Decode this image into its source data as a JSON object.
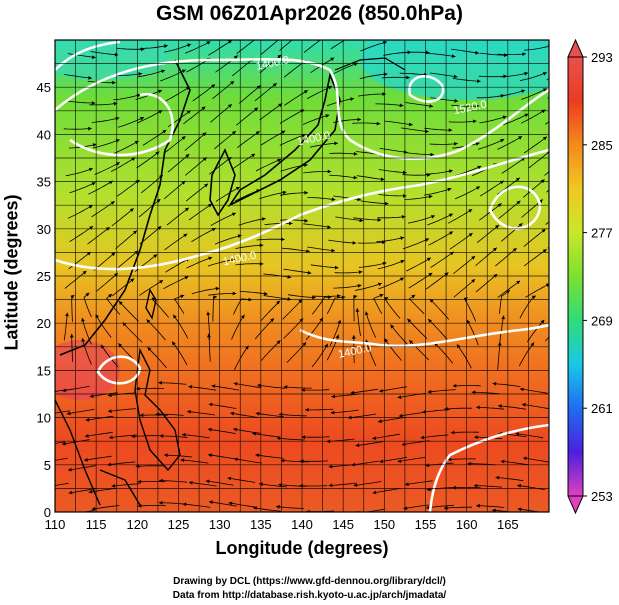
{
  "title": "GSM 06Z01Apr2026 (850.0hPa)",
  "xlabel": "Longitude (degrees)",
  "ylabel": "Latitude  (degrees)",
  "credits": [
    "Drawing by DCL (https://www.gfd-dennou.org/library/dcl/)",
    "Data from http://database.rish.kyoto-u.ac.jp/arch/jmadata/"
  ],
  "map": {
    "x_range": [
      110,
      170
    ],
    "y_range": [
      0,
      50
    ],
    "x_ticks": [
      110,
      115,
      120,
      125,
      130,
      135,
      140,
      145,
      150,
      155,
      160,
      165
    ],
    "y_ticks": [
      0,
      5,
      10,
      15,
      20,
      25,
      30,
      35,
      40,
      45
    ],
    "grid": true,
    "colorbar": {
      "ticks": [
        293,
        285,
        277,
        269,
        261,
        253
      ],
      "range": [
        253,
        293
      ],
      "colors": [
        "#e040c0",
        "#4b20e0",
        "#1e6ef0",
        "#18c8e8",
        "#30dc78",
        "#7ce030",
        "#c8e828",
        "#f0c820",
        "#f48a1c",
        "#ec3c20",
        "#e85050"
      ]
    },
    "contour_labels": [
      "1400.0",
      "1400.0",
      "1400.0",
      "1400.0",
      "1520.0"
    ],
    "contour_label_positions": [
      [
        136.5,
        47.2
      ],
      [
        141.5,
        39.2
      ],
      [
        132.5,
        26.5
      ],
      [
        146.5,
        16.7
      ],
      [
        160.5,
        42.5
      ]
    ]
  }
}
